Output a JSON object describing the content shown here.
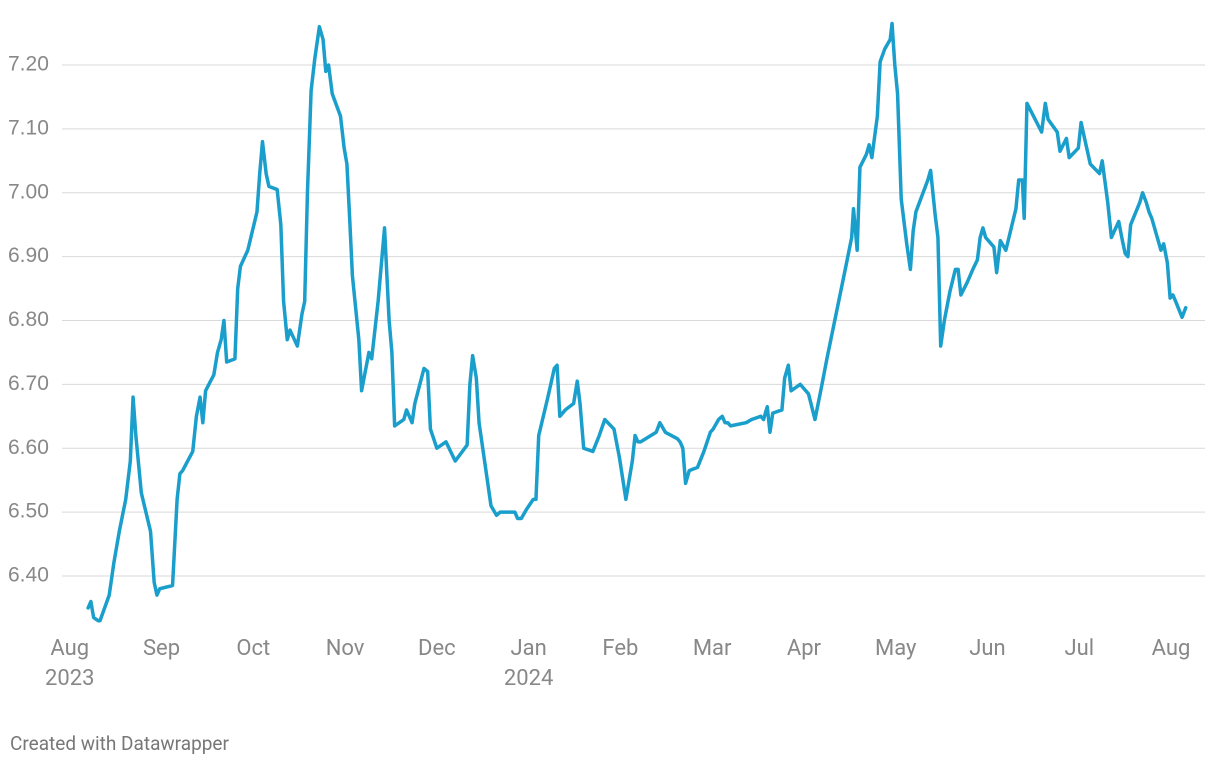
{
  "chart_data": {
    "type": "line",
    "color": "#1a9ecb",
    "grid": true,
    "credit": "Created with Datawrapper",
    "xlim": [
      -0.76,
      12.37
    ],
    "ylim": [
      6.33,
      7.27
    ],
    "xticks": [
      {
        "value": 0,
        "label": "Aug\n2023"
      },
      {
        "value": 1,
        "label": "Sep"
      },
      {
        "value": 2,
        "label": "Oct"
      },
      {
        "value": 3,
        "label": "Nov"
      },
      {
        "value": 4,
        "label": "Dec"
      },
      {
        "value": 5,
        "label": "Jan\n2024"
      },
      {
        "value": 6,
        "label": "Feb"
      },
      {
        "value": 7,
        "label": "Mar"
      },
      {
        "value": 8,
        "label": "Apr"
      },
      {
        "value": 9,
        "label": "May"
      },
      {
        "value": 10,
        "label": "Jun"
      },
      {
        "value": 11,
        "label": "Jul"
      },
      {
        "value": 12,
        "label": "Aug"
      }
    ],
    "yticks": [
      {
        "value": 6.4,
        "label": "6.40"
      },
      {
        "value": 6.5,
        "label": "6.50"
      },
      {
        "value": 6.6,
        "label": "6.60"
      },
      {
        "value": 6.7,
        "label": "6.70"
      },
      {
        "value": 6.8,
        "label": "6.80"
      },
      {
        "value": 6.9,
        "label": "6.90"
      },
      {
        "value": 7.0,
        "label": "7.00"
      },
      {
        "value": 7.1,
        "label": "7.10"
      },
      {
        "value": 7.2,
        "label": "7.20"
      }
    ],
    "x": [
      0.2,
      0.23,
      0.26,
      0.31,
      0.33,
      0.43,
      0.48,
      0.54,
      0.61,
      0.66,
      0.69,
      0.72,
      0.78,
      0.88,
      0.92,
      0.95,
      0.98,
      1.12,
      1.17,
      1.2,
      1.23,
      1.34,
      1.38,
      1.42,
      1.45,
      1.48,
      1.57,
      1.61,
      1.65,
      1.68,
      1.71,
      1.8,
      1.83,
      1.86,
      1.94,
      2.04,
      2.07,
      2.1,
      2.14,
      2.17,
      2.26,
      2.3,
      2.33,
      2.37,
      2.4,
      2.48,
      2.53,
      2.56,
      2.59,
      2.63,
      2.67,
      2.72,
      2.76,
      2.79,
      2.82,
      2.86,
      2.95,
      2.99,
      3.02,
      3.05,
      3.08,
      3.15,
      3.18,
      3.26,
      3.29,
      3.36,
      3.43,
      3.48,
      3.51,
      3.54,
      3.64,
      3.67,
      3.73,
      3.76,
      3.86,
      3.9,
      3.93,
      4.0,
      4.1,
      4.2,
      4.33,
      4.36,
      4.39,
      4.43,
      4.46,
      4.52,
      4.59,
      4.65,
      4.69,
      4.85,
      4.88,
      4.92,
      4.98,
      5.05,
      5.08,
      5.11,
      5.21,
      5.28,
      5.31,
      5.34,
      5.4,
      5.49,
      5.53,
      5.56,
      5.6,
      5.7,
      5.77,
      5.83,
      5.93,
      5.99,
      6.06,
      6.13,
      6.16,
      6.19,
      6.22,
      6.39,
      6.43,
      6.49,
      6.62,
      6.65,
      6.68,
      6.71,
      6.75,
      6.84,
      6.91,
      6.98,
      7.01,
      7.07,
      7.11,
      7.14,
      7.17,
      7.2,
      7.37,
      7.43,
      7.53,
      7.56,
      7.6,
      7.63,
      7.66,
      7.76,
      7.79,
      7.83,
      7.86,
      7.96,
      8.02,
      8.05,
      8.12,
      8.19,
      8.25,
      8.35,
      8.45,
      8.52,
      8.54,
      8.58,
      8.61,
      8.68,
      8.71,
      8.74,
      8.8,
      8.83,
      8.88,
      8.94,
      8.96,
      8.99,
      9.02,
      9.06,
      9.12,
      9.16,
      9.19,
      9.22,
      9.35,
      9.38,
      9.43,
      9.46,
      9.49,
      9.53,
      9.59,
      9.65,
      9.68,
      9.71,
      9.78,
      9.84,
      9.89,
      9.92,
      9.95,
      9.98,
      10.07,
      10.1,
      10.14,
      10.2,
      10.31,
      10.34,
      10.38,
      10.4,
      10.43,
      10.59,
      10.63,
      10.66,
      10.76,
      10.79,
      10.86,
      10.89,
      10.99,
      11.02,
      11.05,
      11.12,
      11.22,
      11.25,
      11.31,
      11.35,
      11.43,
      11.47,
      11.5,
      11.53,
      11.56,
      11.66,
      11.69,
      11.73,
      11.76,
      11.79,
      11.89,
      11.92,
      11.96,
      11.99,
      12.02,
      12.05,
      12.12,
      12.16
    ],
    "values": [
      6.35,
      6.36,
      6.335,
      6.33,
      6.33,
      6.37,
      6.42,
      6.47,
      6.52,
      6.58,
      6.68,
      6.62,
      6.53,
      6.47,
      6.39,
      6.37,
      6.38,
      6.385,
      6.52,
      6.56,
      6.565,
      6.595,
      6.65,
      6.68,
      6.64,
      6.69,
      6.715,
      6.75,
      6.77,
      6.8,
      6.735,
      6.74,
      6.85,
      6.885,
      6.91,
      6.97,
      7.03,
      7.08,
      7.03,
      7.01,
      7.005,
      6.95,
      6.83,
      6.77,
      6.785,
      6.76,
      6.81,
      6.83,
      7.0,
      7.16,
      7.21,
      7.26,
      7.24,
      7.19,
      7.2,
      7.155,
      7.12,
      7.07,
      7.045,
      6.96,
      6.87,
      6.77,
      6.69,
      6.75,
      6.74,
      6.83,
      6.945,
      6.8,
      6.75,
      6.635,
      6.645,
      6.66,
      6.64,
      6.67,
      6.725,
      6.72,
      6.63,
      6.6,
      6.61,
      6.58,
      6.605,
      6.7,
      6.745,
      6.71,
      6.64,
      6.58,
      6.51,
      6.495,
      6.5,
      6.5,
      6.49,
      6.49,
      6.505,
      6.52,
      6.52,
      6.62,
      6.68,
      6.725,
      6.73,
      6.65,
      6.66,
      6.67,
      6.705,
      6.67,
      6.6,
      6.595,
      6.62,
      6.645,
      6.63,
      6.585,
      6.52,
      6.58,
      6.62,
      6.61,
      6.61,
      6.625,
      6.64,
      6.625,
      6.615,
      6.61,
      6.6,
      6.545,
      6.565,
      6.57,
      6.595,
      6.625,
      6.63,
      6.645,
      6.65,
      6.64,
      6.64,
      6.635,
      6.64,
      6.645,
      6.65,
      6.645,
      6.665,
      6.625,
      6.655,
      6.66,
      6.71,
      6.73,
      6.69,
      6.7,
      6.69,
      6.685,
      6.645,
      6.695,
      6.74,
      6.81,
      6.88,
      6.93,
      6.975,
      6.91,
      7.04,
      7.06,
      7.075,
      7.055,
      7.12,
      7.205,
      7.225,
      7.24,
      7.265,
      7.2,
      7.155,
      6.99,
      6.92,
      6.88,
      6.94,
      6.97,
      7.02,
      7.035,
      6.965,
      6.93,
      6.76,
      6.8,
      6.845,
      6.88,
      6.88,
      6.84,
      6.86,
      6.88,
      6.895,
      6.93,
      6.945,
      6.93,
      6.915,
      6.875,
      6.925,
      6.91,
      6.975,
      7.02,
      7.02,
      6.96,
      7.14,
      7.095,
      7.14,
      7.115,
      7.095,
      7.065,
      7.085,
      7.055,
      7.07,
      7.11,
      7.09,
      7.045,
      7.03,
      7.05,
      6.985,
      6.93,
      6.955,
      6.925,
      6.905,
      6.9,
      6.95,
      6.985,
      7.0,
      6.985,
      6.97,
      6.96,
      6.91,
      6.92,
      6.89,
      6.835,
      6.84,
      6.83,
      6.805,
      6.82
    ]
  }
}
